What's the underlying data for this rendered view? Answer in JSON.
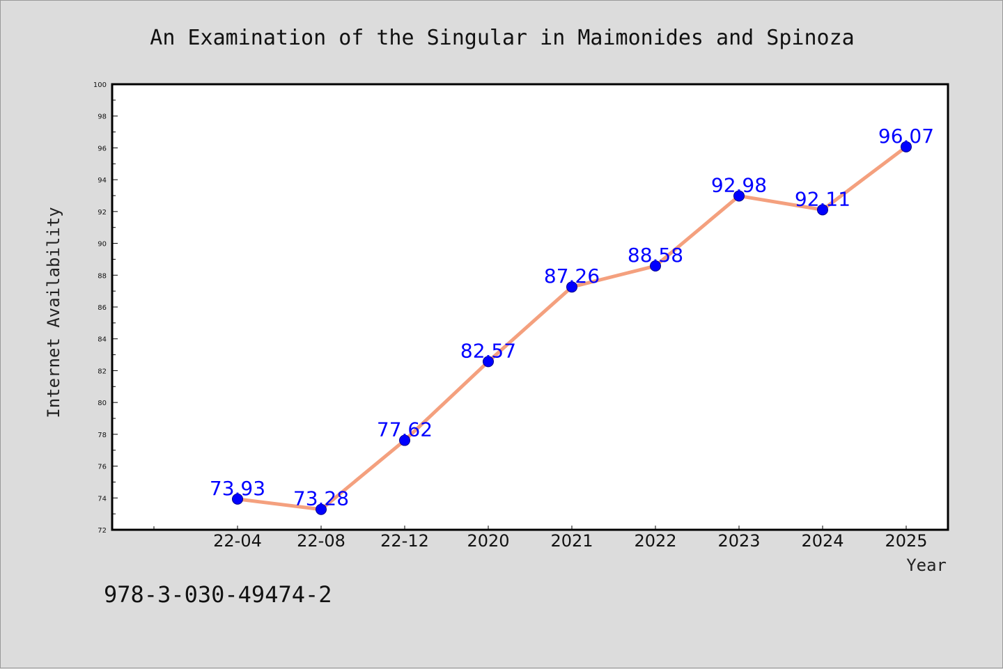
{
  "chart_data": {
    "type": "line",
    "title": "An Examination of the Singular in Maimonides and Spinoza",
    "xlabel": "Year",
    "ylabel": "Internet Availability",
    "categories": [
      "22-04",
      "22-08",
      "22-12",
      "2020",
      "2021",
      "2022",
      "2023",
      "2024",
      "2025"
    ],
    "series": [
      {
        "values": [
          73.93,
          73.28,
          77.62,
          82.57,
          87.26,
          88.58,
          92.98,
          92.11,
          96.07
        ],
        "data_labels": [
          "73.93",
          "73.28",
          "77.62",
          "82.57",
          "87.26",
          "88.58",
          "92.98",
          "92.11",
          "96.07"
        ]
      }
    ],
    "ylim": [
      72,
      100
    ],
    "yticks": [
      72,
      74,
      76,
      78,
      80,
      82,
      84,
      86,
      88,
      90,
      92,
      94,
      96,
      98,
      100
    ],
    "grid": false,
    "legend": "none",
    "colors": {
      "line": "#f4a07e",
      "marker": "#0000ff",
      "data_label": "#0000ff",
      "background": "#dcdcdc",
      "plot_background": "#ffffff",
      "axes": "#000000"
    }
  },
  "footer_text": "978-3-030-49474-2"
}
